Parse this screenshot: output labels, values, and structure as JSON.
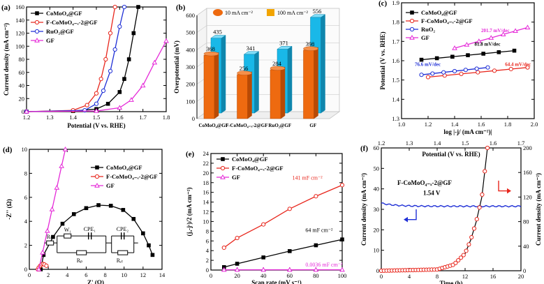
{
  "chart_data": [
    {
      "panel": "a",
      "type": "line",
      "xlabel": "Potential (V vs. RHE)",
      "ylabel": "Current density (mA cm⁻²)",
      "xlim": [
        1.2,
        1.8
      ],
      "ylim": [
        0,
        160
      ],
      "xticks": [
        "1.2",
        "1.3",
        "1.4",
        "1.5",
        "1.6",
        "1.7",
        "1.8"
      ],
      "yticks": [
        "0",
        "20",
        "40",
        "60",
        "80",
        "100",
        "120",
        "140",
        "160"
      ],
      "legend": "top-left",
      "series": [
        {
          "name": "CoMoO₄@GF",
          "color": "#000000",
          "marker": "square",
          "x": [
            1.2,
            1.4,
            1.5,
            1.55,
            1.6,
            1.62,
            1.64,
            1.66,
            1.68
          ],
          "y": [
            0,
            1,
            4,
            12,
            30,
            50,
            80,
            120,
            160
          ]
        },
        {
          "name": "F-CoMoO₄₋ₓ-2@GF",
          "color": "#e8261c",
          "marker": "circle",
          "x": [
            1.2,
            1.4,
            1.46,
            1.5,
            1.52,
            1.54,
            1.56,
            1.58
          ],
          "y": [
            0,
            2,
            10,
            28,
            50,
            80,
            120,
            160
          ]
        },
        {
          "name": "RuO₂@GF",
          "color": "#1f2fd6",
          "marker": "circle",
          "x": [
            1.2,
            1.45,
            1.5,
            1.53,
            1.56,
            1.58,
            1.6,
            1.62
          ],
          "y": [
            0,
            2,
            12,
            32,
            62,
            95,
            130,
            160
          ]
        },
        {
          "name": "GF",
          "color": "#e52ad8",
          "marker": "triangle",
          "x": [
            1.2,
            1.5,
            1.6,
            1.65,
            1.7,
            1.75,
            1.8
          ],
          "y": [
            0,
            1,
            6,
            18,
            40,
            75,
            108
          ]
        }
      ]
    },
    {
      "panel": "b",
      "type": "bar",
      "ylabel": "Overpotential (mV)",
      "ylim": [
        0,
        600
      ],
      "yticks": [
        "0",
        "100",
        "200",
        "300",
        "400",
        "500",
        "600"
      ],
      "categories": [
        "CoMoO₄@GF",
        "F-CoMoO₄₋ₓ-2@GF",
        "RuO₂@GF",
        "GF"
      ],
      "series": [
        {
          "name": "10 mA cm⁻²",
          "color": "#ee6a10",
          "values": [
            368,
            256,
            284,
            398
          ],
          "labels": [
            "368",
            "256",
            "284",
            "398"
          ]
        },
        {
          "name": "100 mA cm⁻²",
          "color": "#19b8e8",
          "values": [
            435,
            341,
            371,
            556
          ],
          "labels": [
            "435",
            "341",
            "371",
            "556"
          ]
        }
      ]
    },
    {
      "panel": "c",
      "type": "line",
      "xlabel": "log |-j/ (mA cm⁻²)|",
      "ylabel": "Potential (V vs. RHE)",
      "xlim": [
        1.0,
        2.0
      ],
      "ylim": [
        1.3,
        1.9
      ],
      "xticks": [
        "1.0",
        "1.2",
        "1.4",
        "1.6",
        "1.8",
        "2.0"
      ],
      "yticks": [
        "1.3",
        "1.4",
        "1.5",
        "1.6",
        "1.7",
        "1.8",
        "1.9"
      ],
      "legend": "top-left",
      "series": [
        {
          "name": "CoMoO₄@GF",
          "color": "#000000",
          "marker": "square",
          "x": [
            1.15,
            1.85
          ],
          "y": [
            1.605,
            1.652
          ],
          "slope_label": "81.8 mV/dec"
        },
        {
          "name": "F-CoMoO₄₋ₓ-2@GF",
          "color": "#e8261c",
          "marker": "circle",
          "x": [
            1.2,
            1.95
          ],
          "y": [
            1.515,
            1.565
          ],
          "slope_label": "64.4 mV/dec"
        },
        {
          "name": "RuO₂",
          "color": "#1f2fd6",
          "marker": "circle",
          "x": [
            1.15,
            1.65
          ],
          "y": [
            1.527,
            1.565
          ],
          "slope_label": "76.6 mV/dec"
        },
        {
          "name": "GF",
          "color": "#e52ad8",
          "marker": "triangle",
          "x": [
            1.4,
            1.95
          ],
          "y": [
            1.665,
            1.772
          ],
          "slope_label": "201.7 mV/dec"
        }
      ]
    },
    {
      "panel": "d",
      "type": "scatter",
      "xlabel": "Z' (Ω)",
      "ylabel": "-Z'' (Ω)",
      "xlim": [
        0,
        14
      ],
      "ylim": [
        0,
        10
      ],
      "xticks": [
        "0",
        "2",
        "4",
        "6",
        "8",
        "10",
        "12",
        "14"
      ],
      "yticks": [
        "0",
        "2",
        "4",
        "6",
        "8",
        "10"
      ],
      "legend": "top-right",
      "series": [
        {
          "name": "CoMoO₄@GF",
          "color": "#000000",
          "marker": "square",
          "x": [
            1.2,
            1.5,
            2.5,
            3.5,
            4.7,
            6.0,
            7.3,
            8.6,
            9.9,
            11.0,
            12.0,
            12.6,
            13.0
          ],
          "y": [
            0,
            1.2,
            2.7,
            3.8,
            4.6,
            5.1,
            5.35,
            5.3,
            4.95,
            4.2,
            3.0,
            2.0,
            1.2
          ]
        },
        {
          "name": "F-CoMoO₄₋ₓ-2@GF",
          "color": "#e8261c",
          "marker": "circle",
          "x": [
            0.9,
            1.0,
            1.15,
            1.3,
            1.45,
            1.6,
            1.8
          ],
          "y": [
            0,
            0.15,
            0.3,
            0.4,
            0.45,
            0.4,
            0.3
          ]
        },
        {
          "name": "GF",
          "color": "#e52ad8",
          "marker": "triangle",
          "x": [
            1.0,
            1.4,
            1.9,
            2.4,
            2.9,
            3.4,
            3.8
          ],
          "y": [
            0,
            1.4,
            3.2,
            5.0,
            6.8,
            8.6,
            10.0
          ]
        }
      ],
      "circuit_labels": [
        "Rₛ",
        "W₁",
        "CPE₁",
        "CPE₂",
        "Rₚ",
        "Rₑₜ"
      ]
    },
    {
      "panel": "e",
      "type": "line",
      "xlabel": "Scan rate (mV s⁻¹)",
      "ylabel": "(jₐ-jᶜ)/2 (mA cm⁻²)",
      "xlim": [
        0,
        100
      ],
      "ylim": [
        0,
        24
      ],
      "xticks": [
        "0",
        "20",
        "40",
        "60",
        "80",
        "100"
      ],
      "yticks": [
        "0",
        "2",
        "4",
        "6",
        "8",
        "10",
        "12",
        "14",
        "16",
        "18",
        "20",
        "22",
        "24"
      ],
      "legend": "top-left",
      "series": [
        {
          "name": "CoMoO₄@GF",
          "color": "#000000",
          "marker": "square",
          "x": [
            10,
            20,
            40,
            60,
            80,
            100
          ],
          "y": [
            0.6,
            1.3,
            2.6,
            3.9,
            5.1,
            6.3
          ],
          "slope_label": "64 mF cm⁻²"
        },
        {
          "name": "F-CoMoO₄₋ₓ-2@GF",
          "color": "#e8261c",
          "marker": "circle",
          "x": [
            10,
            20,
            40,
            60,
            80,
            100
          ],
          "y": [
            4.6,
            6.6,
            9.4,
            12.6,
            15.2,
            17.5
          ],
          "slope_label": "141 mF cm⁻²"
        },
        {
          "name": "GF",
          "color": "#e52ad8",
          "marker": "triangle",
          "x": [
            10,
            20,
            40,
            60,
            80,
            100
          ],
          "y": [
            0.05,
            0.05,
            0.05,
            0.05,
            0.05,
            0.05
          ],
          "slope_label": "0.0036 mF cm⁻²"
        }
      ]
    },
    {
      "panel": "f",
      "type": "line",
      "xlabel": "Time (h)",
      "ylabel": "Current density (mA cm⁻²)",
      "xlabel_top": "Potential (V vs. RHE)",
      "ylabel_right": "Current density (mA cm⁻²)",
      "xlim": [
        0,
        20
      ],
      "ylim": [
        0,
        60
      ],
      "xlim_top": [
        1.2,
        1.7
      ],
      "ylim_right": [
        0,
        200
      ],
      "xticks": [
        "0",
        "4",
        "8",
        "12",
        "16",
        "20"
      ],
      "yticks": [
        "0",
        "10",
        "20",
        "30",
        "40",
        "50",
        "60"
      ],
      "xticks_top": [
        "1.2",
        "1.3",
        "1.4",
        "1.5",
        "1.6",
        "1.7"
      ],
      "yticks_right": [
        "0",
        "40",
        "80",
        "120",
        "160",
        "200"
      ],
      "annotation": "F-CoMoO₄₋ₓ-2@GF",
      "voltage_label": "1.54 V",
      "series": [
        {
          "name": "stability",
          "color": "#1f2fd6",
          "x": [
            0,
            2,
            4,
            6,
            8,
            10,
            12,
            14,
            16,
            18,
            20
          ],
          "y": [
            33,
            32.2,
            31.7,
            31.9,
            31.6,
            31.8,
            31.5,
            31.6,
            31.8,
            31.7,
            31.9
          ]
        },
        {
          "name": "polarization-red",
          "color": "#e8261c",
          "marker": "circle",
          "x_top": [
            1.2,
            1.4,
            1.46,
            1.5,
            1.52,
            1.54,
            1.56,
            1.58
          ],
          "y_right": [
            0,
            2,
            10,
            28,
            50,
            80,
            120,
            200
          ]
        },
        {
          "name": "polarization-black",
          "color": "#000000",
          "x_top": [
            1.2,
            1.4,
            1.46,
            1.5,
            1.52,
            1.54,
            1.56,
            1.58
          ],
          "y_right": [
            0,
            2,
            10,
            28,
            50,
            80,
            120,
            200
          ]
        }
      ]
    }
  ],
  "panel_labels": [
    "(a)",
    "(b)",
    "(c)",
    "(d)",
    "(e)",
    "(f)"
  ]
}
